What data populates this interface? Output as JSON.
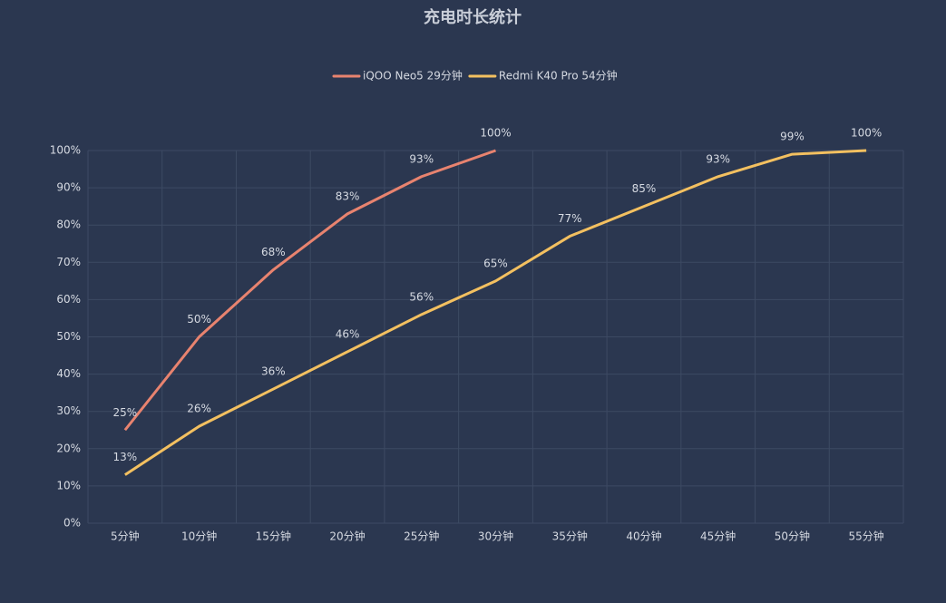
{
  "chart_data": {
    "type": "line",
    "title": "充电时长统计",
    "categories": [
      "5分钟",
      "10分钟",
      "15分钟",
      "20分钟",
      "25分钟",
      "30分钟",
      "35分钟",
      "40分钟",
      "45分钟",
      "50分钟",
      "55分钟"
    ],
    "series": [
      {
        "name": "iQOO Neo5 29分钟",
        "color": "#e8836f",
        "values": [
          25,
          50,
          68,
          83,
          93,
          100,
          null,
          null,
          null,
          null,
          null
        ],
        "value_labels": [
          "25%",
          "50%",
          "68%",
          "83%",
          "93%",
          "100%",
          null,
          null,
          null,
          null,
          null
        ]
      },
      {
        "name": "Redmi K40 Pro 54分钟",
        "color": "#f3c060",
        "values": [
          13,
          26,
          36,
          46,
          56,
          65,
          77,
          85,
          93,
          99,
          100
        ],
        "value_labels": [
          "13%",
          "26%",
          "36%",
          "46%",
          "56%",
          "65%",
          "77%",
          "85%",
          "93%",
          "99%",
          "100%"
        ]
      }
    ],
    "ylim": [
      0,
      100
    ],
    "yticks": [
      {
        "value": 0,
        "label": "0%"
      },
      {
        "value": 10,
        "label": "10%"
      },
      {
        "value": 20,
        "label": "20%"
      },
      {
        "value": 30,
        "label": "30%"
      },
      {
        "value": 40,
        "label": "40%"
      },
      {
        "value": 50,
        "label": "50%"
      },
      {
        "value": 60,
        "label": "60%"
      },
      {
        "value": 70,
        "label": "70%"
      },
      {
        "value": 80,
        "label": "80%"
      },
      {
        "value": 90,
        "label": "90%"
      },
      {
        "value": 100,
        "label": "100%"
      }
    ],
    "grid": true,
    "legend": "top"
  }
}
